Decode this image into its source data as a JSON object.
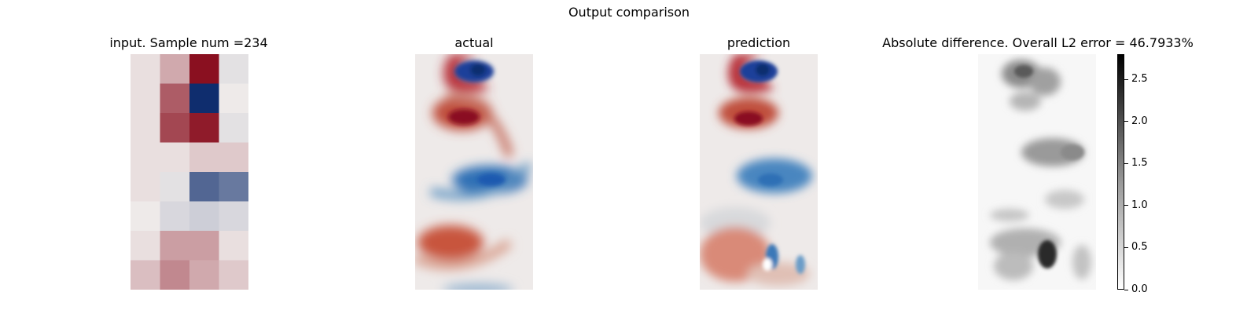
{
  "figure": {
    "suptitle": "Output comparison"
  },
  "panels": [
    {
      "title": "input. Sample num =234"
    },
    {
      "title": "actual"
    },
    {
      "title": "prediction"
    },
    {
      "title": "Absolute difference. Overall L2 error = 46.7933%"
    }
  ],
  "chart_data": {
    "type": "heatmap",
    "title": "Output comparison",
    "panels": [
      "input. Sample num =234",
      "actual",
      "prediction",
      "Absolute difference. Overall L2 error = 46.7933%"
    ],
    "input_grid": {
      "rows": 8,
      "cols": 4,
      "values": [
        [
          0.05,
          0.3,
          1.0,
          -0.05
        ],
        [
          0.05,
          0.65,
          -1.0,
          0.0
        ],
        [
          0.05,
          0.75,
          0.95,
          -0.05
        ],
        [
          0.05,
          0.05,
          0.15,
          0.15
        ],
        [
          0.05,
          -0.05,
          -0.7,
          -0.6
        ],
        [
          0.0,
          -0.1,
          -0.15,
          -0.1
        ],
        [
          0.05,
          0.35,
          0.35,
          0.05
        ],
        [
          0.2,
          0.45,
          0.3,
          0.15
        ]
      ]
    },
    "diverging_colormap": {
      "negative": "#0f2d6e",
      "mid": "#eeeae9",
      "positive": "#8a1020"
    },
    "colorbar": {
      "ticks": [
        0.0,
        0.5,
        1.0,
        1.5,
        2.0,
        2.5
      ],
      "tick_labels": [
        "0.0",
        "0.5",
        "1.0",
        "1.5",
        "2.0",
        "2.5"
      ],
      "range": [
        0,
        2.8
      ],
      "colormap": "Greys"
    }
  }
}
